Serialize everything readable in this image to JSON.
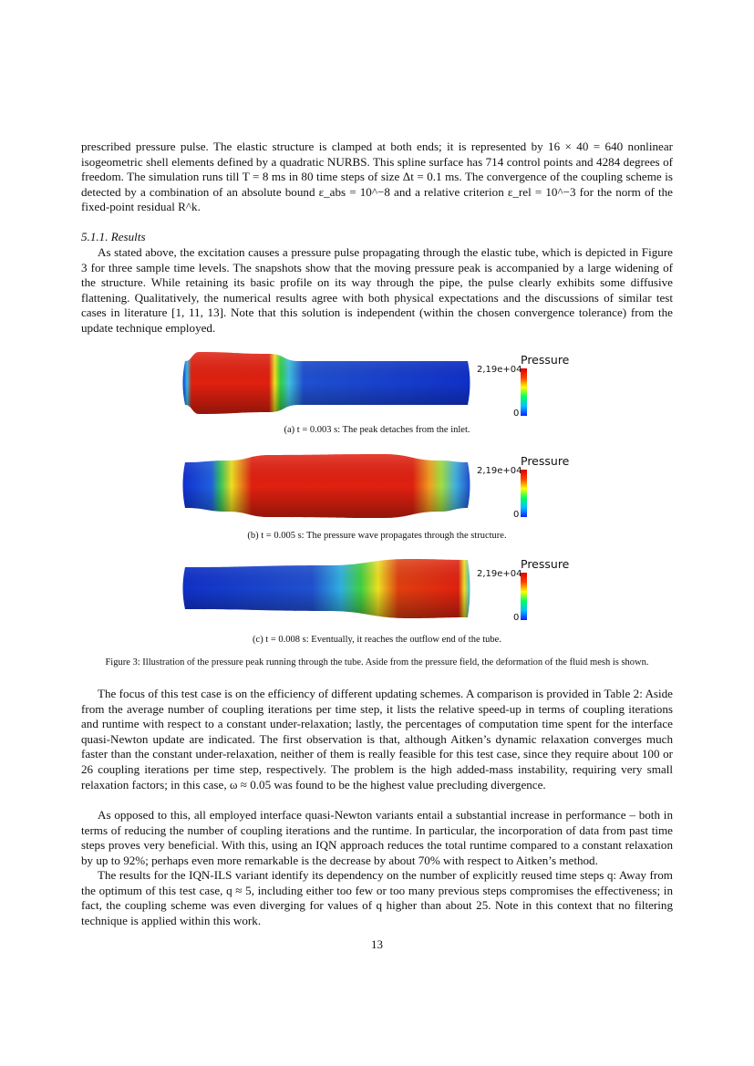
{
  "intro_paragraph": "prescribed pressure pulse. The elastic structure is clamped at both ends; it is represented by 16 × 40 = 640 nonlinear isogeometric shell elements defined by a quadratic NURBS. This spline surface has 714 control points and 4284 degrees of freedom. The simulation runs till T = 8 ms in 80 time steps of size Δt = 0.1 ms. The convergence of the coupling scheme is detected by a combination of an absolute bound ε_abs = 10^−8 and a relative criterion ε_rel = 10^−3 for the norm of the fixed-point residual R^k.",
  "section_heading": "5.1.1. Results",
  "results_paragraph": "As stated above, the excitation causes a pressure pulse propagating through the elastic tube, which is depicted in Figure 3 for three sample time levels. The snapshots show that the moving pressure peak is accompanied by a large widening of the structure. While retaining its basic profile on its way through the pipe, the pulse clearly exhibits some diffusive flattening. Qualitatively, the numerical results agree with both physical expectations and the discussions of similar test cases in literature [1, 11, 13]. Note that this solution is independent (within the chosen convergence tolerance) from the update technique employed.",
  "figure": {
    "colorbar": {
      "label": "Pressure",
      "max": "2,19e+04",
      "min": "0"
    },
    "subfigures": [
      {
        "caption": "(a) t = 0.003 s: The peak detaches from the inlet."
      },
      {
        "caption": "(b) t = 0.005 s: The pressure wave propagates through the structure."
      },
      {
        "caption": "(c) t = 0.008 s: Eventually, it reaches the outflow end of the tube."
      }
    ],
    "caption": "Figure 3: Illustration of the pressure peak running through the tube. Aside from the pressure field, the deformation of the fluid mesh is shown."
  },
  "paragraphs": [
    "The focus of this test case is on the efficiency of different updating schemes. A comparison is provided in Table 2: Aside from the average number of coupling iterations per time step, it lists the relative speed-up in terms of coupling iterations and runtime with respect to a constant under-relaxation; lastly, the percentages of computation time spent for the interface quasi-Newton update are indicated. The first observation is that, although Aitken’s dynamic relaxation converges much faster than the constant under-relaxation, neither of them is really feasible for this test case, since they require about 100 or 26 coupling iterations per time step, respectively. The problem is the high added-mass instability, requiring very small relaxation factors; in this case, ω ≈ 0.05 was found to be the highest value precluding divergence.",
    "As opposed to this, all employed interface quasi-Newton variants entail a substantial increase in performance – both in terms of reducing the number of coupling iterations and the runtime. In particular, the incorporation of data from past time steps proves very beneficial. With this, using an IQN approach reduces the total runtime compared to a constant relaxation by up to 92%; perhaps even more remarkable is the decrease by about 70% with respect to Aitken’s method.",
    "The results for the IQN-ILS variant identify its dependency on the number of explicitly reused time steps q: Away from the optimum of this test case, q ≈ 5, including either too few or too many previous steps compromises the effectiveness; in fact, the coupling scheme was even diverging for values of q higher than about 25. Note in this context that no filtering technique is applied within this work."
  ],
  "page_number": "13"
}
